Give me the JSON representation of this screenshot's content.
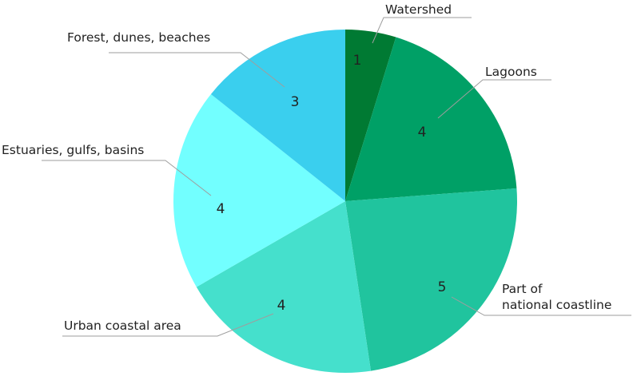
{
  "chart_data": {
    "type": "pie",
    "categories": [
      "Watershed",
      "Lagoons",
      "Part of national coastline",
      "Urban coastal area",
      "Estuaries, gulfs, basins",
      "Forest, dunes, beaches"
    ],
    "values": [
      1,
      4,
      5,
      4,
      4,
      3
    ],
    "label_lines": [
      [
        "Watershed"
      ],
      [
        "Lagoons"
      ],
      [
        "Part of",
        "national coastline"
      ],
      [
        "Urban coastal area"
      ],
      [
        "Estuaries, gulfs, basins"
      ],
      [
        "Forest, dunes, beaches"
      ]
    ],
    "colors": [
      "#007a33",
      "#00a066",
      "#20c49e",
      "#45e0cc",
      "#72ffff",
      "#3acfee"
    ],
    "start_angle_deg": 0,
    "direction": "clockwise",
    "legend": "none",
    "title": ""
  }
}
